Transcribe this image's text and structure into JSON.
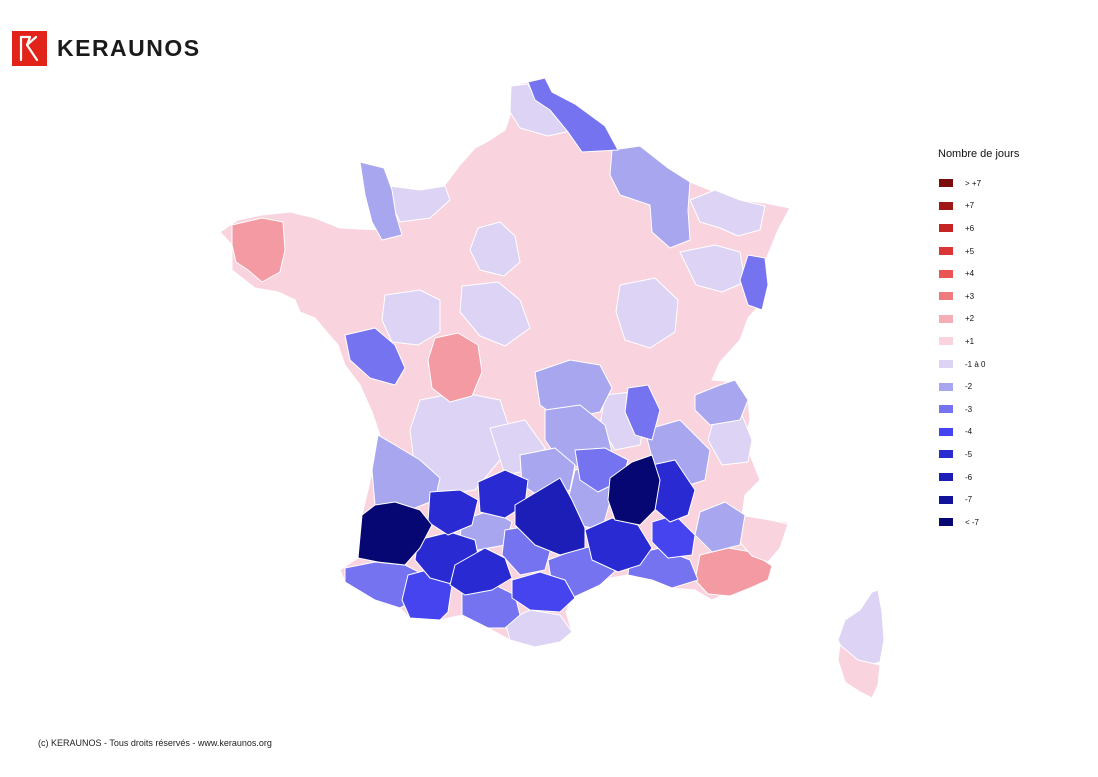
{
  "header": {
    "logo_text": "KERAUNOS",
    "logo_icon": "keraunos-k-logo",
    "logo_color": "#e2231a"
  },
  "legend": {
    "title": "Nombre de jours",
    "items": [
      {
        "label": "> +7",
        "color": "#7a0c0c"
      },
      {
        "label": "+7",
        "color": "#a01515"
      },
      {
        "label": "+6",
        "color": "#c42424"
      },
      {
        "label": "+5",
        "color": "#dc3535"
      },
      {
        "label": "+4",
        "color": "#eb5454"
      },
      {
        "label": "+3",
        "color": "#ef7c7c"
      },
      {
        "label": "+2",
        "color": "#f5aeb5"
      },
      {
        "label": "+1",
        "color": "#f9d3de"
      },
      {
        "label": "-1 à 0",
        "color": "#ddd4f5"
      },
      {
        "label": "-2",
        "color": "#a9a6f0"
      },
      {
        "label": "-3",
        "color": "#7573ef"
      },
      {
        "label": "-4",
        "color": "#4544ef"
      },
      {
        "label": "-5",
        "color": "#2a2ad2"
      },
      {
        "label": "-6",
        "color": "#1d1db8"
      },
      {
        "label": "-7",
        "color": "#11119a"
      },
      {
        "label": "< -7",
        "color": "#070774"
      }
    ]
  },
  "map": {
    "type": "choropleth",
    "region": "France (départements)",
    "colors": {
      "plus3": "#f39aa3",
      "plus2": "#f5aeb5",
      "plus1": "#f9d3de",
      "zero": "#ddd4f5",
      "minus2": "#a9a6f0",
      "minus3": "#7573ef",
      "minus4": "#4544ef",
      "minus5": "#2a2ad2",
      "minus6": "#1d1db8",
      "minus7": "#11119a",
      "below7": "#070774",
      "border": "#ffffff"
    }
  },
  "footer": {
    "copyright": "(c) KERAUNOS - Tous droits réservés - www.keraunos.org"
  }
}
